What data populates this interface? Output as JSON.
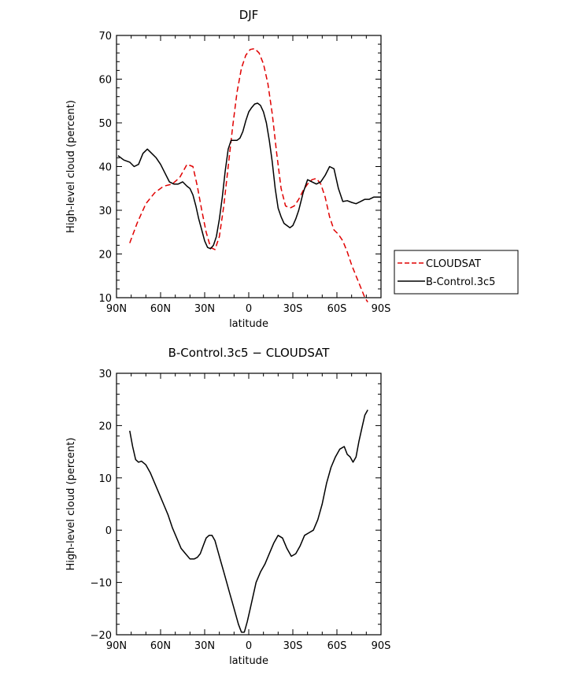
{
  "chart_data": [
    {
      "type": "line",
      "title": "DJF",
      "xlabel": "latitude",
      "ylabel": "High-level cloud (percent)",
      "xlim": [
        -90,
        90
      ],
      "ylim": [
        10,
        70
      ],
      "x_ticks": [
        -90,
        -60,
        -30,
        0,
        30,
        60,
        90
      ],
      "x_tick_labels": [
        "90N",
        "60N",
        "30N",
        "0",
        "30S",
        "60S",
        "90S"
      ],
      "y_ticks": [
        10,
        20,
        30,
        40,
        50,
        60,
        70
      ],
      "y_tick_labels": [
        "10",
        "20",
        "30",
        "40",
        "50",
        "60",
        "70"
      ],
      "legend_position": "right",
      "series": [
        {
          "name": "CLOUDSAT",
          "color": "#e00000",
          "dash": "dashed",
          "x": [
            -81,
            -76,
            -70,
            -64,
            -58,
            -52,
            -47,
            -42,
            -38,
            -35,
            -32,
            -29,
            -26,
            -23,
            -20,
            -17,
            -14,
            -11,
            -8,
            -5,
            -2,
            1,
            4,
            7,
            10,
            13,
            16,
            19,
            22,
            25,
            28,
            31,
            34,
            37,
            40,
            43,
            46,
            49,
            52,
            55,
            58,
            61,
            64,
            67,
            70,
            73,
            76,
            79,
            81
          ],
          "values": [
            22.5,
            27,
            31.5,
            34,
            35.5,
            36,
            37.5,
            40.5,
            40,
            35.5,
            30,
            25,
            21.5,
            21,
            24,
            31,
            40,
            49,
            57,
            62.5,
            65.5,
            66.8,
            67,
            66,
            63.5,
            59,
            52,
            43,
            35,
            31,
            30.5,
            31,
            32.5,
            34.5,
            36,
            37,
            37.3,
            36,
            33,
            28.5,
            25.5,
            24.5,
            23,
            20.5,
            17.5,
            15,
            12.5,
            10,
            9
          ]
        },
        {
          "name": "B-Control.3c5",
          "color": "#000000",
          "dash": "solid",
          "x": [
            -89,
            -85,
            -81,
            -78,
            -75,
            -72,
            -69,
            -66,
            -63,
            -60,
            -57,
            -54,
            -51,
            -48,
            -45,
            -42,
            -40,
            -38,
            -36,
            -34,
            -32,
            -30,
            -28,
            -26,
            -24,
            -22,
            -20,
            -18,
            -16,
            -14,
            -12,
            -10,
            -8,
            -6,
            -4,
            -2,
            0,
            2,
            4,
            6,
            8,
            10,
            12,
            14,
            16,
            18,
            20,
            22,
            24,
            26,
            28,
            30,
            32,
            34,
            37,
            40,
            43,
            46,
            49,
            52,
            55,
            58,
            61,
            64,
            67,
            70,
            73,
            76,
            79,
            82,
            85,
            88,
            90
          ],
          "values": [
            42.5,
            41.5,
            41,
            40,
            40.5,
            43,
            44,
            43,
            42,
            40.5,
            38.5,
            36.5,
            36,
            36,
            36.5,
            35.5,
            35,
            33.5,
            31,
            28,
            25.5,
            23,
            21.5,
            21.2,
            22,
            24,
            28,
            33,
            39,
            44,
            46,
            46,
            46,
            46.5,
            48,
            50.5,
            52.5,
            53.5,
            54.3,
            54.5,
            54,
            52.5,
            50,
            46,
            41,
            35,
            30.5,
            28.5,
            27,
            26.5,
            26,
            26.5,
            28,
            30,
            34,
            37,
            36.5,
            36,
            36.5,
            38,
            40,
            39.5,
            35,
            32,
            32.2,
            31.8,
            31.5,
            32,
            32.5,
            32.5,
            33,
            33,
            33
          ]
        }
      ]
    },
    {
      "type": "line",
      "title": "B-Control.3c5 − CLOUDSAT",
      "xlabel": "latitude",
      "ylabel": "High-level cloud (percent)",
      "xlim": [
        -90,
        90
      ],
      "ylim": [
        -20,
        30
      ],
      "x_ticks": [
        -90,
        -60,
        -30,
        0,
        30,
        60,
        90
      ],
      "x_tick_labels": [
        "90N",
        "60N",
        "30N",
        "0",
        "30S",
        "60S",
        "90S"
      ],
      "y_ticks": [
        -20,
        -10,
        0,
        10,
        20,
        30
      ],
      "y_tick_labels": [
        "−20",
        "−10",
        "0",
        "10",
        "20",
        "30"
      ],
      "series": [
        {
          "name": "B-Control.3c5 − CLOUDSAT",
          "color": "#000000",
          "dash": "solid",
          "x": [
            -81,
            -79,
            -77,
            -75,
            -73,
            -70,
            -67,
            -64,
            -61,
            -58,
            -55,
            -52,
            -49,
            -46,
            -43,
            -40,
            -37,
            -35,
            -33,
            -31,
            -29,
            -27,
            -25,
            -23,
            -21,
            -19,
            -17,
            -15,
            -13,
            -11,
            -9,
            -7,
            -5,
            -3,
            -1,
            1,
            3,
            5,
            8,
            11,
            14,
            17,
            20,
            23,
            26,
            29,
            32,
            35,
            38,
            41,
            44,
            47,
            50,
            53,
            56,
            59,
            62,
            65,
            67,
            69,
            71,
            73,
            75,
            77,
            79,
            81
          ],
          "values": [
            19,
            16,
            13.5,
            13,
            13.2,
            12.5,
            11,
            9,
            7,
            5,
            3,
            0.5,
            -1.5,
            -3.5,
            -4.5,
            -5.5,
            -5.5,
            -5.2,
            -4.5,
            -3,
            -1.5,
            -1,
            -1,
            -2,
            -4,
            -6,
            -8,
            -10,
            -12,
            -14,
            -16,
            -18,
            -19.5,
            -19.5,
            -17.5,
            -15,
            -12.5,
            -10,
            -8,
            -6.5,
            -4.5,
            -2.5,
            -1,
            -1.5,
            -3.5,
            -5,
            -4.5,
            -3,
            -1,
            -0.5,
            0,
            2,
            5,
            9,
            12,
            14,
            15.5,
            16,
            14.5,
            14,
            13,
            14,
            17,
            19.5,
            22,
            23
          ]
        }
      ]
    }
  ]
}
